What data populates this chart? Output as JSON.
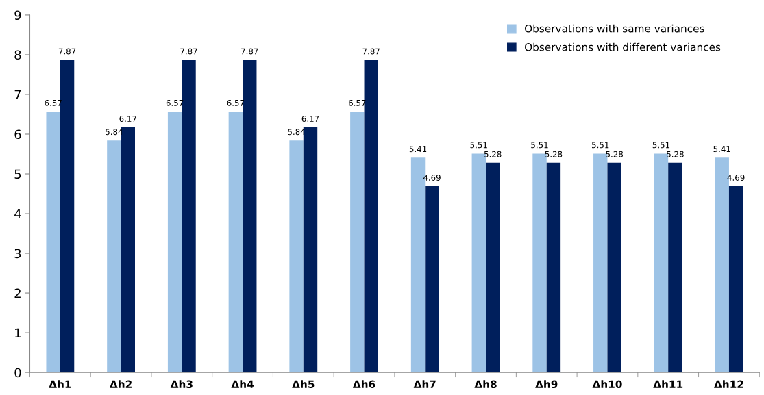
{
  "chart_data": {
    "type": "bar",
    "categories": [
      "Δh1",
      "Δh2",
      "Δh3",
      "Δh4",
      "Δh5",
      "Δh6",
      "Δh7",
      "Δh8",
      "Δh9",
      "Δh10",
      "Δh11",
      "Δh12"
    ],
    "series": [
      {
        "name": "Observations with same variances",
        "color": "#9dc3e6",
        "values": [
          6.57,
          5.84,
          6.57,
          6.57,
          5.84,
          6.57,
          5.41,
          5.51,
          5.51,
          5.51,
          5.51,
          5.41
        ]
      },
      {
        "name": "Observations with different variances",
        "color": "#001f5c",
        "values": [
          7.87,
          6.17,
          7.87,
          7.87,
          6.17,
          7.87,
          4.69,
          5.28,
          5.28,
          5.28,
          5.28,
          4.69
        ]
      }
    ],
    "ylim": [
      0,
      9
    ],
    "yticks": [
      0,
      1,
      2,
      3,
      4,
      5,
      6,
      7,
      8,
      9
    ],
    "data_labels": true,
    "grid": false,
    "legend": "top right"
  }
}
